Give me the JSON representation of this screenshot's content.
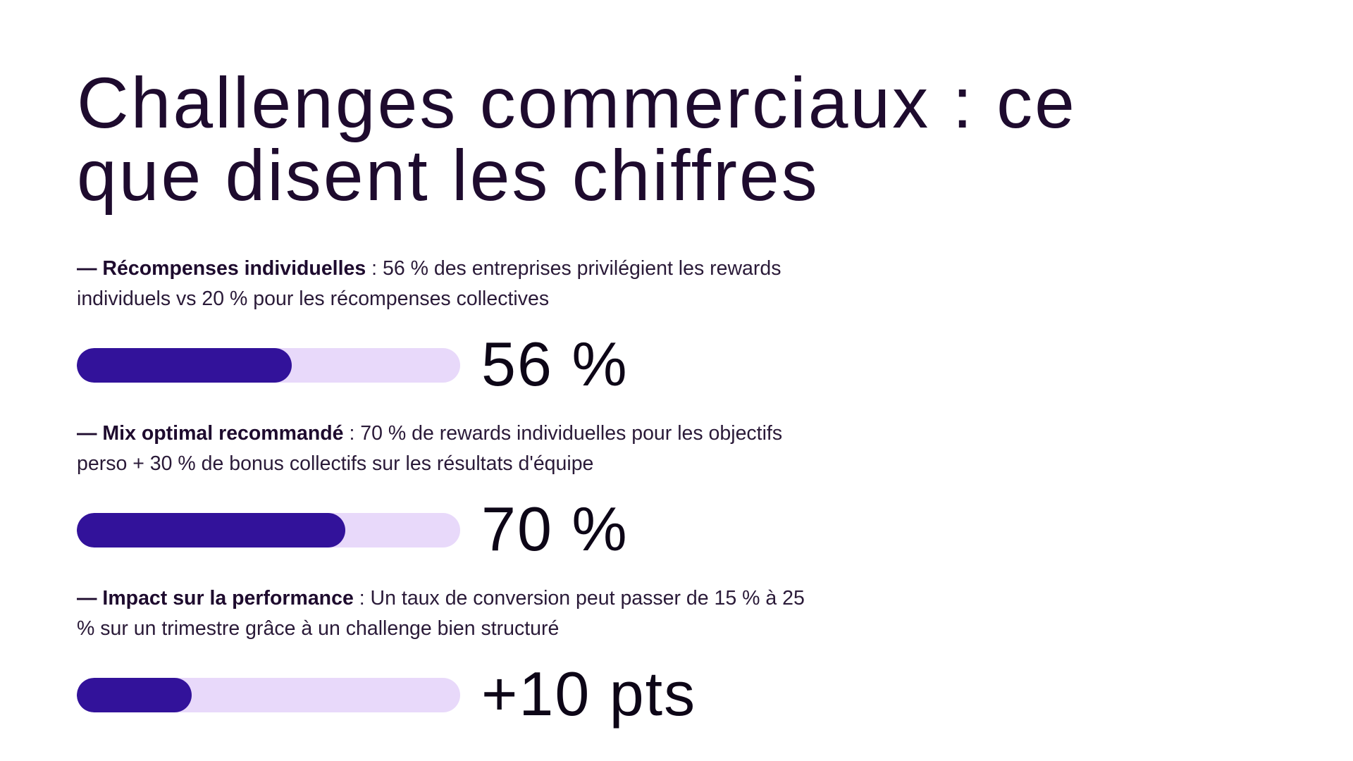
{
  "title": "Challenges commerciaux : ce que disent les chiffres",
  "items": [
    {
      "label": "— Récompenses individuelles",
      "text": ": 56 % des entreprises privilégient les rewards individuels vs 20 % pour les récompenses collectives",
      "bar": 56,
      "stat": "56 %"
    },
    {
      "label": "— Mix optimal recommandé",
      "text": ": 70 % de rewards individuelles pour les objectifs perso + 30 % de bonus collectifs sur les résultats d'équipe",
      "bar": 70,
      "stat": "70 %"
    },
    {
      "label": "— Impact sur la performance",
      "text": ": Un taux de conversion peut passer de 15 % à 25 % sur un trimestre grâce à un challenge bien structuré",
      "bar": 30,
      "stat": "+10 pts"
    }
  ]
}
